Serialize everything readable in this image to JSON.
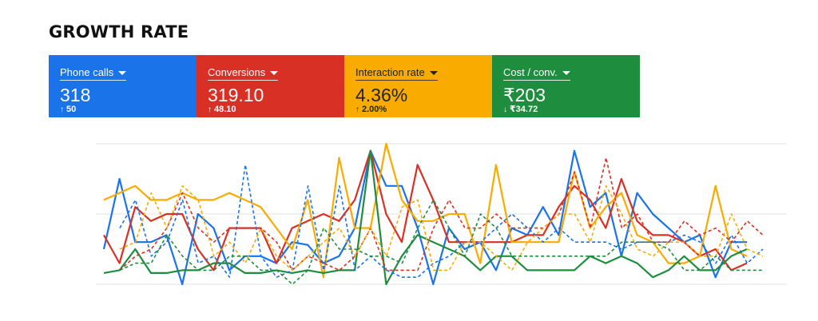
{
  "page": {
    "title": "GROWTH RATE"
  },
  "colors": {
    "blue": "#1a73e8",
    "red": "#d93025",
    "yellow": "#f9ab00",
    "green": "#1e8e3e"
  },
  "cards": [
    {
      "label": "Phone calls",
      "value": "318",
      "delta": "50",
      "direction": "up",
      "color": "#1a73e8"
    },
    {
      "label": "Conversions",
      "value": "319.10",
      "delta": "48.10",
      "direction": "up",
      "color": "#d93025"
    },
    {
      "label": "Interaction rate",
      "value": "4.36%",
      "delta": "2.00%",
      "direction": "up",
      "color": "#f9ab00"
    },
    {
      "label": "Cost / conv.",
      "value": "₹203",
      "delta": "₹34.72",
      "direction": "down",
      "color": "#1e8e3e"
    }
  ],
  "chart_data": {
    "type": "line",
    "xlabel": "",
    "ylabel": "",
    "ylim": [
      0,
      100
    ],
    "grid": true,
    "gridlines": [
      0,
      50,
      100
    ],
    "legend": "none",
    "series": [
      {
        "color": "#1a73e8",
        "style": "solid",
        "values": [
          25,
          75,
          30,
          30,
          35,
          0,
          50,
          40,
          10,
          20,
          20,
          15,
          30,
          28,
          15,
          20,
          40,
          95,
          70,
          70,
          40,
          0,
          40,
          25,
          30,
          10,
          40,
          35,
          55,
          35,
          95,
          55,
          65,
          20,
          65,
          50,
          40,
          30,
          35,
          5,
          30,
          30
        ]
      },
      {
        "color": "#d93025",
        "style": "solid",
        "values": [
          35,
          15,
          55,
          45,
          50,
          50,
          25,
          10,
          40,
          40,
          40,
          15,
          40,
          45,
          50,
          45,
          60,
          95,
          50,
          30,
          85,
          60,
          30,
          30,
          30,
          30,
          30,
          35,
          35,
          55,
          70,
          60,
          40,
          75,
          45,
          35,
          35,
          30,
          20,
          25,
          10,
          15
        ]
      },
      {
        "color": "#f9ab00",
        "style": "solid",
        "values": [
          60,
          65,
          70,
          60,
          60,
          65,
          60,
          60,
          65,
          60,
          55,
          40,
          25,
          60,
          5,
          90,
          40,
          40,
          100,
          60,
          45,
          45,
          50,
          50,
          15,
          85,
          30,
          30,
          30,
          30,
          80,
          40,
          55,
          65,
          35,
          30,
          15,
          15,
          20,
          70,
          25,
          20
        ]
      },
      {
        "color": "#1e8e3e",
        "style": "solid",
        "values": [
          8,
          10,
          25,
          8,
          8,
          10,
          10,
          15,
          15,
          8,
          8,
          10,
          8,
          10,
          8,
          10,
          10,
          95,
          0,
          20,
          35,
          30,
          25,
          20,
          10,
          20,
          20,
          10,
          10,
          10,
          10,
          20,
          15,
          20,
          15,
          5,
          10,
          20,
          10,
          10,
          20,
          25
        ]
      },
      {
        "color": "#1a73e8",
        "style": "dashed",
        "values": [
          40,
          60,
          20,
          30,
          60,
          15,
          20,
          5,
          85,
          20,
          5,
          10,
          70,
          10,
          70,
          10,
          20,
          10,
          5,
          5,
          15,
          20,
          30,
          30,
          40,
          50,
          40,
          30,
          40,
          30,
          30,
          30,
          25,
          30,
          30,
          30,
          35,
          30,
          15,
          35,
          15,
          25
        ]
      },
      {
        "color": "#d93025",
        "style": "dashed",
        "values": [
          10,
          20,
          25,
          40,
          65,
          40,
          30,
          40,
          40,
          40,
          30,
          10,
          20,
          15,
          10,
          20,
          40,
          10,
          10,
          10,
          40,
          60,
          40,
          40,
          50,
          40,
          40,
          40,
          50,
          80,
          40,
          90,
          40,
          50,
          30,
          30,
          45,
          35,
          40,
          30,
          45,
          35
        ]
      },
      {
        "color": "#f9ab00",
        "style": "dashed",
        "values": [
          25,
          30,
          65,
          40,
          70,
          60,
          20,
          30,
          15,
          40,
          20,
          10,
          20,
          30,
          40,
          20,
          40,
          20,
          55,
          60,
          10,
          10,
          30,
          30,
          20,
          10,
          30,
          40,
          50,
          50,
          30,
          70,
          50,
          25,
          20,
          30,
          30,
          20,
          20,
          50,
          25,
          20
        ]
      },
      {
        "color": "#1e8e3e",
        "style": "dashed",
        "values": [
          10,
          15,
          15,
          35,
          20,
          10,
          10,
          20,
          20,
          10,
          10,
          0,
          10,
          40,
          25,
          25,
          20,
          20,
          15,
          40,
          60,
          40,
          20,
          50,
          40,
          20,
          20,
          20,
          20,
          20,
          20,
          20,
          30,
          30,
          30,
          25,
          10,
          10,
          20,
          10,
          10,
          10
        ]
      }
    ]
  }
}
